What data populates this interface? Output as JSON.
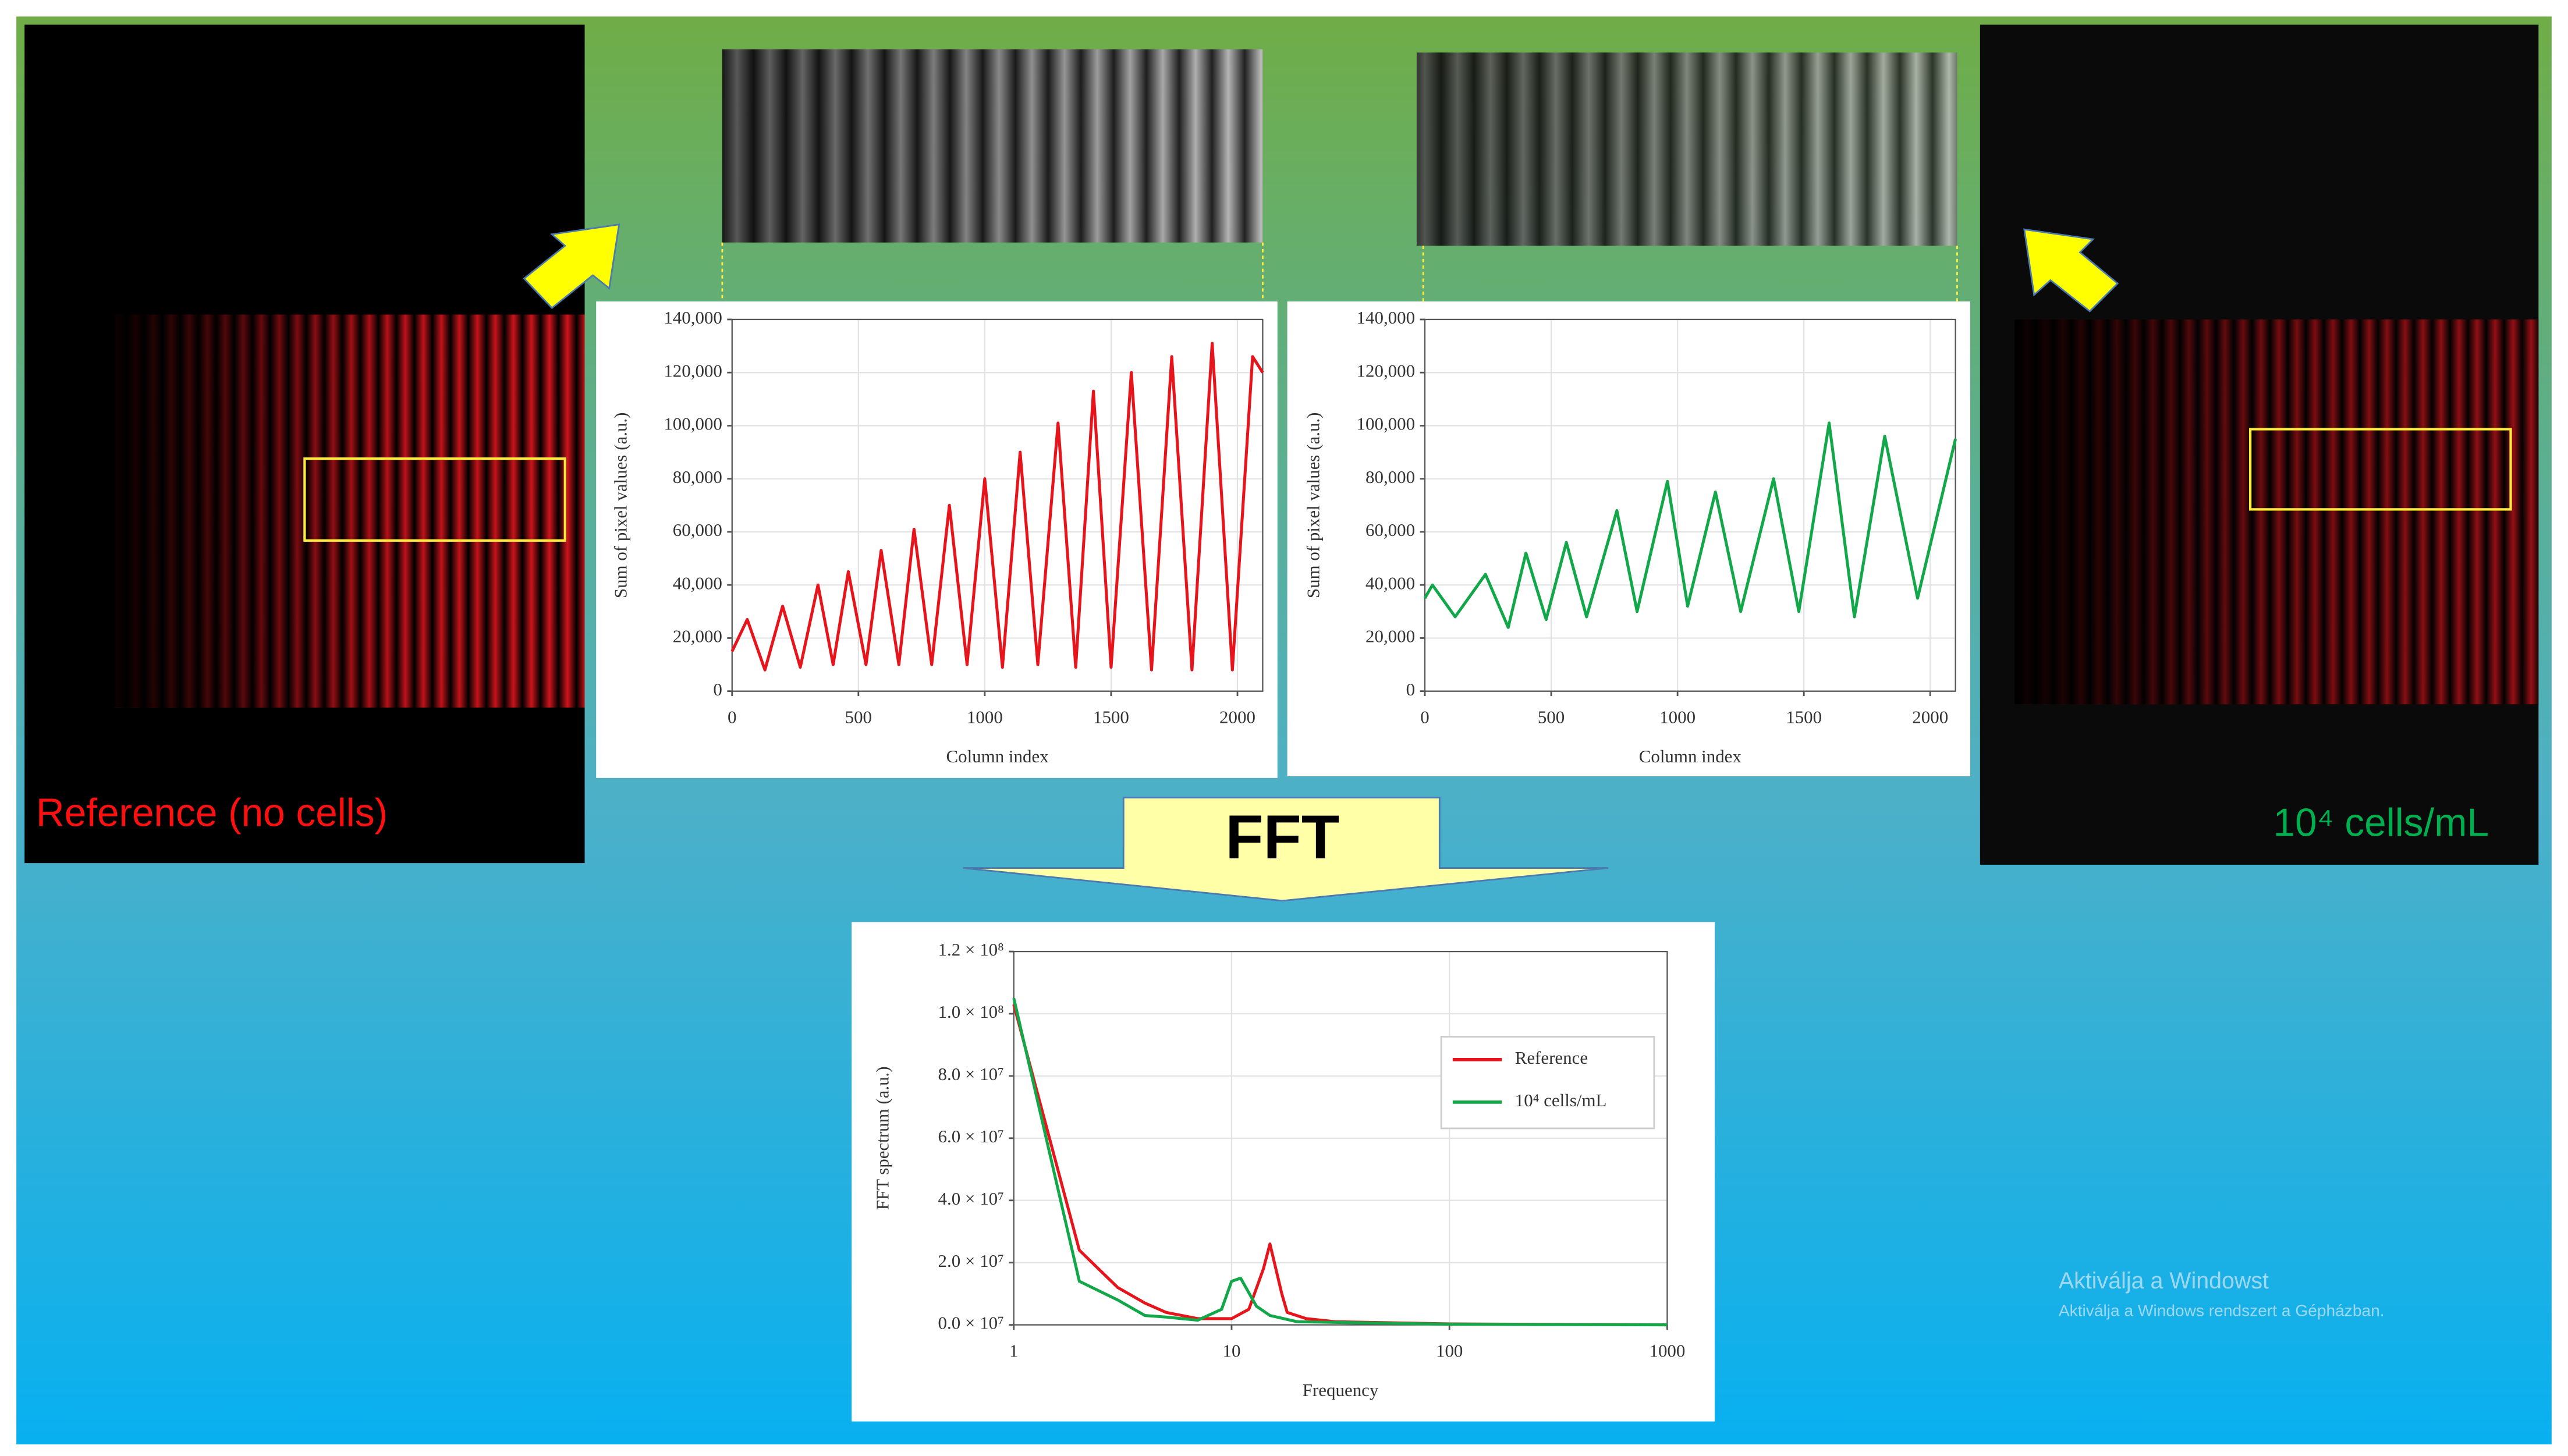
{
  "slide": {
    "left_label": "Reference (no cells)",
    "right_label": "10⁴ cells/mL",
    "arrow_label": "FFT",
    "watermark_title": "Aktiválja a Windowst",
    "watermark_text": "Aktiválja a Windows rendszert a Gépházban."
  },
  "chart_data": [
    {
      "type": "line",
      "x_label": "Column index",
      "y_label": "Sum of pixel values (a.u.)",
      "xlim": [
        0,
        2100
      ],
      "ylim": [
        0,
        140000
      ],
      "xticks": [
        0,
        500,
        1000,
        1500,
        2000
      ],
      "yticks": [
        0,
        {
          "value": 20000,
          "label": "20,000"
        },
        {
          "value": 40000,
          "label": "40,000"
        },
        {
          "value": 60000,
          "label": "60,000"
        },
        {
          "value": 80000,
          "label": "80,000"
        },
        {
          "value": 100000,
          "label": "100,000"
        },
        {
          "value": 120000,
          "label": "120,000"
        },
        {
          "value": 140000,
          "label": "140,000"
        }
      ],
      "grid": true,
      "series": [
        {
          "color": "#e8141b",
          "x": [
            0,
            60,
            130,
            200,
            270,
            340,
            400,
            460,
            530,
            590,
            660,
            720,
            790,
            860,
            930,
            1000,
            1070,
            1140,
            1210,
            1290,
            1360,
            1430,
            1500,
            1580,
            1660,
            1740,
            1820,
            1900,
            1980,
            2060,
            2100
          ],
          "values": [
            15000,
            27000,
            8000,
            32000,
            9000,
            40000,
            10000,
            45000,
            10000,
            53000,
            10000,
            61000,
            10000,
            70000,
            10000,
            80000,
            9000,
            90000,
            10000,
            101000,
            9000,
            113000,
            9000,
            120000,
            8000,
            126000,
            8000,
            131000,
            8000,
            126000,
            120000
          ]
        }
      ]
    },
    {
      "type": "line",
      "x_label": "Column index",
      "y_label": "Sum of pixel values (a.u.)",
      "xlim": [
        0,
        2100
      ],
      "ylim": [
        0,
        140000
      ],
      "xticks": [
        0,
        500,
        1000,
        1500,
        2000
      ],
      "yticks": [
        0,
        {
          "value": 20000,
          "label": "20,000"
        },
        {
          "value": 40000,
          "label": "40,000"
        },
        {
          "value": 60000,
          "label": "60,000"
        },
        {
          "value": 80000,
          "label": "80,000"
        },
        {
          "value": 100000,
          "label": "100,000"
        },
        {
          "value": 120000,
          "label": "120,000"
        },
        {
          "value": 140000,
          "label": "140,000"
        }
      ],
      "grid": true,
      "series": [
        {
          "color": "#12a84a",
          "x": [
            0,
            30,
            120,
            240,
            330,
            400,
            480,
            560,
            640,
            760,
            840,
            960,
            1040,
            1150,
            1250,
            1380,
            1480,
            1600,
            1700,
            1820,
            1950,
            2100
          ],
          "values": [
            35000,
            40000,
            28000,
            44000,
            24000,
            52000,
            27000,
            56000,
            28000,
            68000,
            30000,
            79000,
            32000,
            75000,
            30000,
            80000,
            30000,
            101000,
            28000,
            96000,
            35000,
            95000
          ]
        }
      ]
    },
    {
      "type": "line",
      "x_label": "Frequency",
      "y_label": "FFT spectrum (a.u.)",
      "xscale": "log",
      "xlim": [
        1,
        1000
      ],
      "ylim": [
        0,
        120000000
      ],
      "xticks": [
        1,
        10,
        100,
        1000
      ],
      "yticks": [
        {
          "value": 0,
          "label": "0.0 × 10⁷"
        },
        {
          "value": 20000000,
          "label": "2.0 × 10⁷"
        },
        {
          "value": 40000000,
          "label": "4.0 × 10⁷"
        },
        {
          "value": 60000000,
          "label": "6.0 × 10⁷"
        },
        {
          "value": 80000000,
          "label": "8.0 × 10⁷"
        },
        {
          "value": 100000000,
          "label": "1.0 × 10⁸"
        },
        {
          "value": 120000000,
          "label": "1.2 × 10⁸"
        }
      ],
      "grid": true,
      "legend": "upper right",
      "series": [
        {
          "name": "Reference",
          "color": "#e8141b",
          "x": [
            1,
            2,
            3,
            4,
            5,
            7,
            10,
            12,
            14,
            15,
            17,
            18,
            22,
            30,
            100,
            1000
          ],
          "values": [
            103000000,
            24000000,
            12000000,
            7000000,
            4000000,
            2000000,
            2000000,
            5000000,
            18000000,
            26000000,
            10000000,
            4000000,
            2000000,
            1000000,
            300000,
            0
          ]
        },
        {
          "name": "10⁴ cells/mL",
          "color": "#12a84a",
          "x": [
            1,
            2,
            3,
            4,
            5,
            7,
            9,
            10,
            11,
            13,
            15,
            20,
            100,
            1000
          ],
          "values": [
            105000000,
            14000000,
            8000000,
            3000000,
            2500000,
            1500000,
            5000000,
            14000000,
            15000000,
            6000000,
            3000000,
            1000000,
            200000,
            0
          ]
        }
      ]
    }
  ]
}
